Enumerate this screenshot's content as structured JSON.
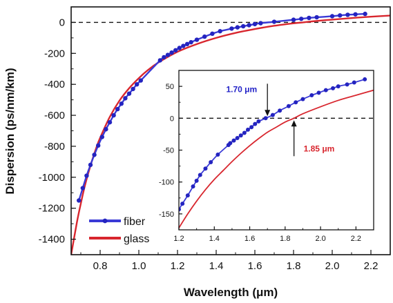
{
  "chart_data": [
    {
      "type": "line",
      "title": "",
      "xlabel": "Wavelength (μm)",
      "ylabel": "Dispersion (ps/nm/km)",
      "xlim": [
        0.65,
        2.3
      ],
      "ylim": [
        -1500,
        100
      ],
      "x_ticks": [
        0.8,
        1.0,
        1.2,
        1.4,
        1.6,
        1.8,
        2.0,
        2.2
      ],
      "x_tick_labels": [
        "0.8",
        "1.0",
        "1.2",
        "1.4",
        "1.6",
        "1.8",
        "2.0",
        "2.2"
      ],
      "y_ticks": [
        0,
        -200,
        -400,
        -600,
        -800,
        -1000,
        -1200,
        -1400
      ],
      "y_tick_labels": [
        "0",
        "-200",
        "-400",
        "-600",
        "-800",
        "-1000",
        "-1200",
        "-1400"
      ],
      "zero_line": true,
      "legend": {
        "placement": "bottom-left",
        "entries": [
          "fiber",
          "glass"
        ]
      },
      "series": [
        {
          "name": "fiber",
          "color": "#3a3ad6",
          "markers": true,
          "x": [
            0.69,
            0.71,
            0.73,
            0.75,
            0.77,
            0.79,
            0.81,
            0.83,
            0.85,
            0.87,
            0.89,
            0.91,
            0.93,
            0.95,
            0.97,
            0.99,
            1.01,
            1.11,
            1.13,
            1.15,
            1.17,
            1.19,
            1.21,
            1.23,
            1.25,
            1.27,
            1.3,
            1.34,
            1.38,
            1.42,
            1.48,
            1.51,
            1.54,
            1.57,
            1.6,
            1.63,
            1.7,
            1.8,
            1.84,
            1.88,
            1.92,
            2.0,
            2.04,
            2.08,
            2.12,
            2.17
          ],
          "y": [
            -1150,
            -1070,
            -990,
            -920,
            -855,
            -795,
            -740,
            -690,
            -645,
            -600,
            -560,
            -525,
            -490,
            -460,
            -430,
            -400,
            -375,
            -245,
            -225,
            -210,
            -195,
            -180,
            -165,
            -152,
            -140,
            -128,
            -112,
            -92,
            -73,
            -57,
            -40,
            -32,
            -25,
            -18,
            -11,
            -5,
            4,
            17,
            23,
            29,
            33,
            40,
            45,
            49,
            52,
            55
          ]
        },
        {
          "name": "glass",
          "color": "#d8262e",
          "markers": false,
          "x": [
            0.65,
            0.68,
            0.7,
            0.72,
            0.75,
            0.78,
            0.8,
            0.85,
            0.9,
            0.95,
            1.0,
            1.05,
            1.1,
            1.2,
            1.3,
            1.4,
            1.5,
            1.6,
            1.7,
            1.8,
            1.85,
            1.9,
            2.0,
            2.1,
            2.2,
            2.3
          ],
          "y": [
            -1500,
            -1290,
            -1170,
            -1060,
            -925,
            -810,
            -745,
            -610,
            -505,
            -425,
            -360,
            -305,
            -260,
            -190,
            -140,
            -100,
            -68,
            -43,
            -22,
            -6,
            0,
            7,
            18,
            28,
            37,
            44
          ]
        }
      ]
    },
    {
      "type": "line",
      "title": "",
      "xlabel": "",
      "ylabel": "",
      "xlim": [
        1.2,
        2.3
      ],
      "ylim": [
        -175,
        75
      ],
      "x_ticks": [
        1.2,
        1.4,
        1.6,
        1.8,
        2.0,
        2.2
      ],
      "x_tick_labels": [
        "1.2",
        "1.4",
        "1.6",
        "1.8",
        "2.0",
        "2.2"
      ],
      "y_ticks": [
        50,
        0,
        -50,
        -100,
        -150
      ],
      "y_tick_labels": [
        "50",
        "0",
        "-50",
        "-100",
        "-150"
      ],
      "zero_line": true,
      "annotations": [
        {
          "text": "1.70 μm",
          "series": "fiber",
          "x": 1.7,
          "y": 0,
          "arrow": "down"
        },
        {
          "text": "1.85 μm",
          "series": "glass",
          "x": 1.85,
          "y": 0,
          "arrow": "up"
        }
      ],
      "series": [
        {
          "name": "fiber",
          "color": "#3a3ad6",
          "markers": true,
          "x": [
            1.2,
            1.22,
            1.25,
            1.28,
            1.3,
            1.32,
            1.35,
            1.38,
            1.42,
            1.48,
            1.49,
            1.51,
            1.53,
            1.55,
            1.57,
            1.59,
            1.61,
            1.63,
            1.65,
            1.69,
            1.73,
            1.77,
            1.82,
            1.86,
            1.9,
            1.95,
            1.99,
            2.03,
            2.07,
            2.1,
            2.15,
            2.19,
            2.25
          ],
          "y": [
            -143,
            -134,
            -121,
            -107,
            -98,
            -89,
            -79,
            -69,
            -57,
            -42,
            -39,
            -35,
            -31,
            -27,
            -23,
            -18,
            -14,
            -9,
            -5,
            0,
            5,
            12,
            19,
            25,
            30,
            36,
            40,
            44,
            47,
            50,
            53,
            56,
            61
          ]
        },
        {
          "name": "glass",
          "color": "#d8262e",
          "markers": false,
          "x": [
            1.2,
            1.25,
            1.3,
            1.35,
            1.4,
            1.45,
            1.5,
            1.55,
            1.6,
            1.65,
            1.7,
            1.75,
            1.8,
            1.85,
            1.9,
            2.0,
            2.1,
            2.2,
            2.3
          ],
          "y": [
            -172,
            -150,
            -130,
            -112,
            -96,
            -82,
            -68,
            -55,
            -43,
            -32,
            -22,
            -14,
            -6,
            0,
            7,
            18,
            28,
            36,
            44
          ]
        }
      ]
    }
  ]
}
